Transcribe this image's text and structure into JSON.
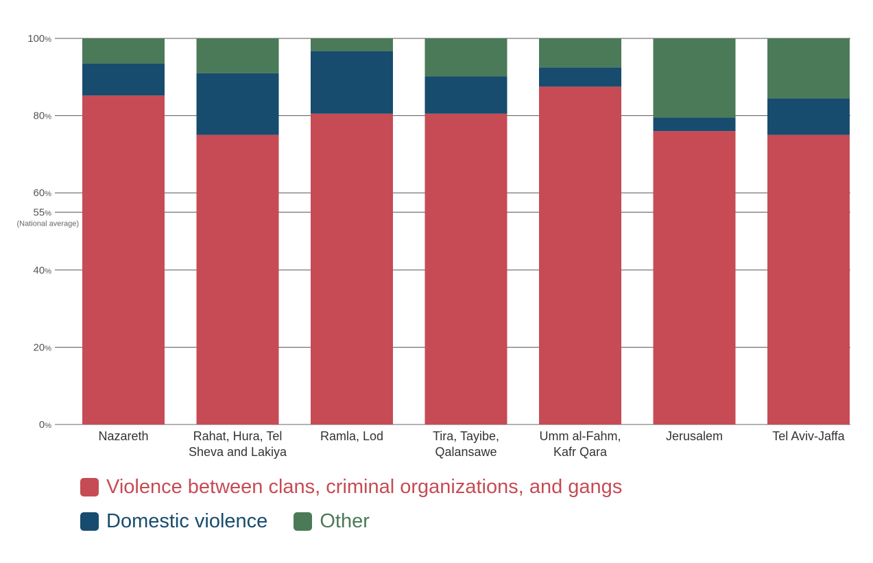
{
  "chart_data": {
    "type": "bar",
    "stacked": true,
    "categories": [
      [
        "Nazareth"
      ],
      [
        "Rahat, Hura, Tel",
        "Sheva and Lakiya"
      ],
      [
        "Ramla, Lod"
      ],
      [
        "Tira, Tayibe,",
        "Qalansawe"
      ],
      [
        "Umm al-Fahm,",
        "Kafr Qara"
      ],
      [
        "Jerusalem"
      ],
      [
        "Tel Aviv-Jaffa"
      ]
    ],
    "series": [
      {
        "name": "Violence between clans, criminal organizations, and gangs",
        "color": "#c64b54",
        "values": [
          85.2,
          75.0,
          80.5,
          80.5,
          87.5,
          76.0,
          75.0
        ]
      },
      {
        "name": "Domestic violence",
        "color": "#174c6e",
        "values": [
          8.3,
          16.0,
          16.2,
          9.7,
          5.0,
          3.5,
          9.5
        ]
      },
      {
        "name": "Other",
        "color": "#4b7a58",
        "values": [
          6.5,
          9.0,
          3.3,
          9.8,
          7.5,
          20.5,
          15.5
        ]
      }
    ],
    "yticks": [
      {
        "value": 0,
        "num": "0",
        "unit": "%"
      },
      {
        "value": 20,
        "num": "20",
        "unit": "%"
      },
      {
        "value": 40,
        "num": "40",
        "unit": "%"
      },
      {
        "value": 55,
        "num": "55",
        "unit": "%",
        "note": "(National average)"
      },
      {
        "value": 60,
        "num": "60",
        "unit": "%"
      },
      {
        "value": 80,
        "num": "80",
        "unit": "%"
      },
      {
        "value": 100,
        "num": "100",
        "unit": "%"
      }
    ],
    "ylim": [
      0,
      100
    ],
    "grid": true,
    "legend_position": "bottom-left",
    "title": "",
    "xlabel": "",
    "ylabel": ""
  },
  "legend": {
    "items": [
      {
        "label": "Violence between clans, criminal organizations, and gangs",
        "color": "#c64b54"
      },
      {
        "label": "Domestic violence",
        "color": "#174c6e"
      },
      {
        "label": "Other",
        "color": "#4b7a58"
      }
    ]
  }
}
